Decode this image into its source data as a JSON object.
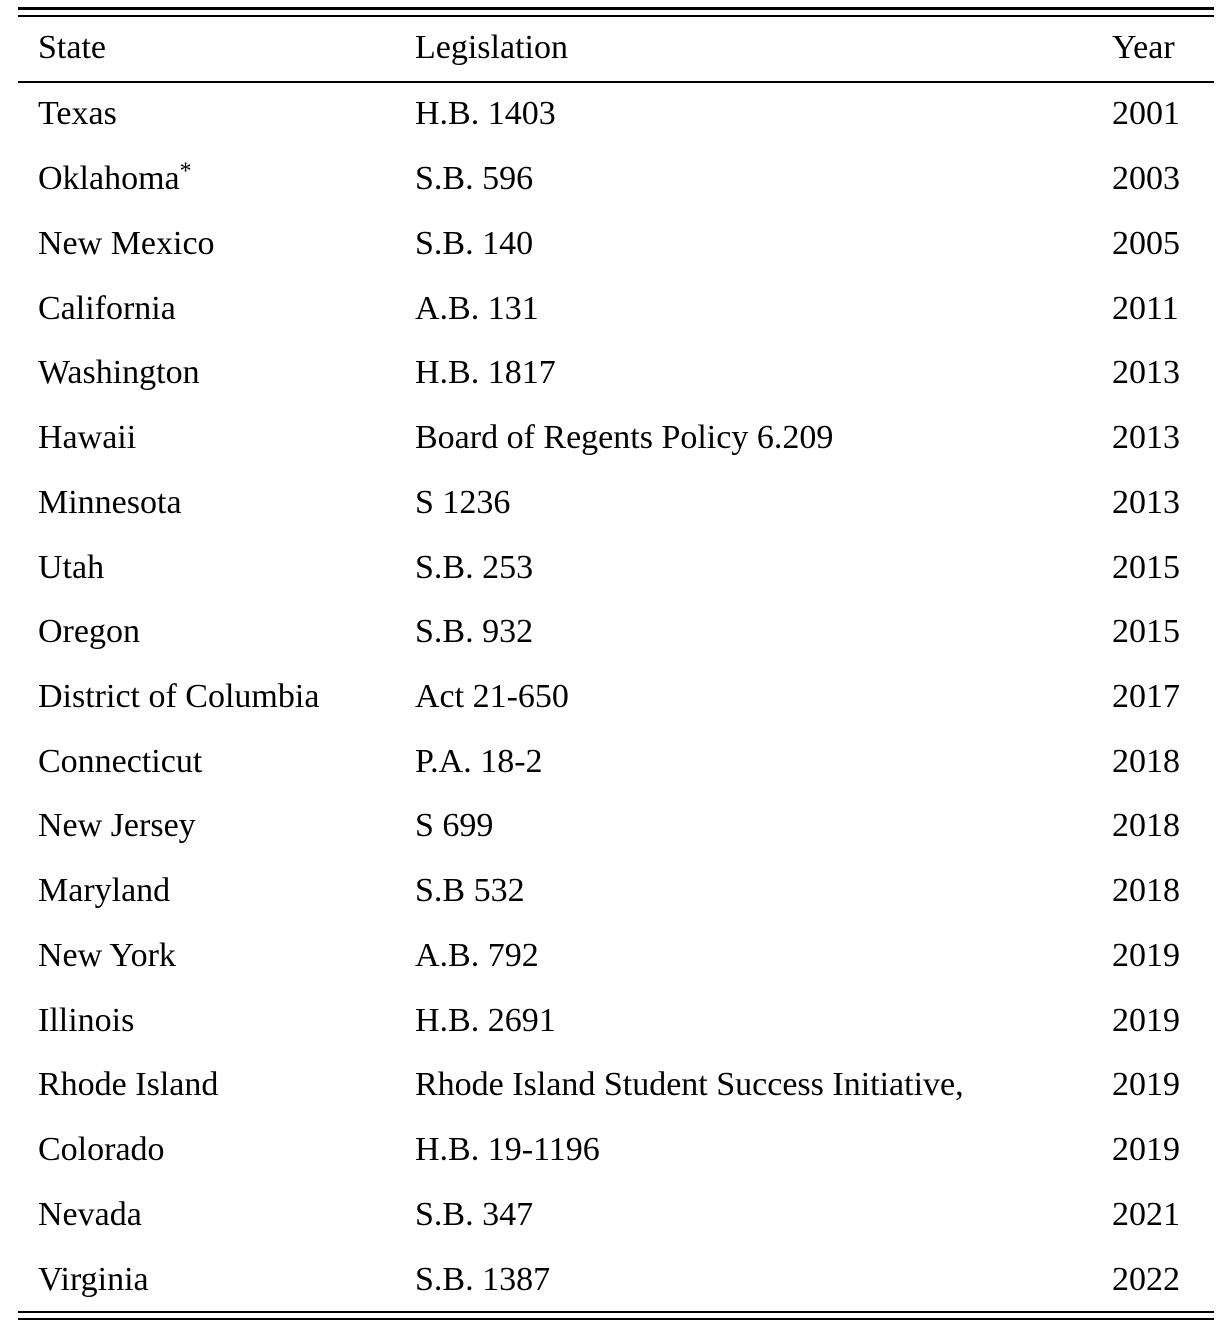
{
  "page": {
    "background_color": "#ffffff",
    "text_color": "#000000",
    "rule_color": "#000000"
  },
  "table": {
    "columns": [
      {
        "key": "state",
        "label": "State"
      },
      {
        "key": "legislation",
        "label": "Legislation"
      },
      {
        "key": "year",
        "label": "Year"
      }
    ],
    "rows": [
      {
        "state": "Texas",
        "sup": "",
        "legislation": "H.B. 1403",
        "year": "2001"
      },
      {
        "state": "Oklahoma",
        "sup": "*",
        "legislation": "S.B. 596",
        "year": "2003"
      },
      {
        "state": "New Mexico",
        "sup": "",
        "legislation": "S.B. 140",
        "year": "2005"
      },
      {
        "state": "California",
        "sup": "",
        "legislation": "A.B. 131",
        "year": "2011"
      },
      {
        "state": "Washington",
        "sup": "",
        "legislation": "H.B. 1817",
        "year": "2013"
      },
      {
        "state": "Hawaii",
        "sup": "",
        "legislation": "Board of Regents Policy 6.209",
        "year": "2013"
      },
      {
        "state": "Minnesota",
        "sup": "",
        "legislation": "S 1236",
        "year": "2013"
      },
      {
        "state": "Utah",
        "sup": "",
        "legislation": "S.B. 253",
        "year": "2015"
      },
      {
        "state": "Oregon",
        "sup": "",
        "legislation": "S.B. 932",
        "year": "2015"
      },
      {
        "state": "District of Columbia",
        "sup": "",
        "legislation": "Act 21-650",
        "year": "2017"
      },
      {
        "state": "Connecticut",
        "sup": "",
        "legislation": "P.A. 18-2",
        "year": "2018"
      },
      {
        "state": "New Jersey",
        "sup": "",
        "legislation": "S 699",
        "year": "2018"
      },
      {
        "state": "Maryland",
        "sup": "",
        "legislation": "S.B 532",
        "year": "2018"
      },
      {
        "state": "New York",
        "sup": "",
        "legislation": "A.B. 792",
        "year": "2019"
      },
      {
        "state": "Illinois",
        "sup": "",
        "legislation": "H.B. 2691",
        "year": "2019"
      },
      {
        "state": "Rhode Island",
        "sup": "",
        "legislation": "Rhode Island Student Success Initiative,",
        "year": "2019"
      },
      {
        "state": "Colorado",
        "sup": "",
        "legislation": "H.B. 19-1196",
        "year": "2019"
      },
      {
        "state": "Nevada",
        "sup": "",
        "legislation": "S.B. 347",
        "year": "2021"
      },
      {
        "state": "Virginia",
        "sup": "",
        "legislation": "S.B. 1387",
        "year": "2022"
      }
    ]
  }
}
